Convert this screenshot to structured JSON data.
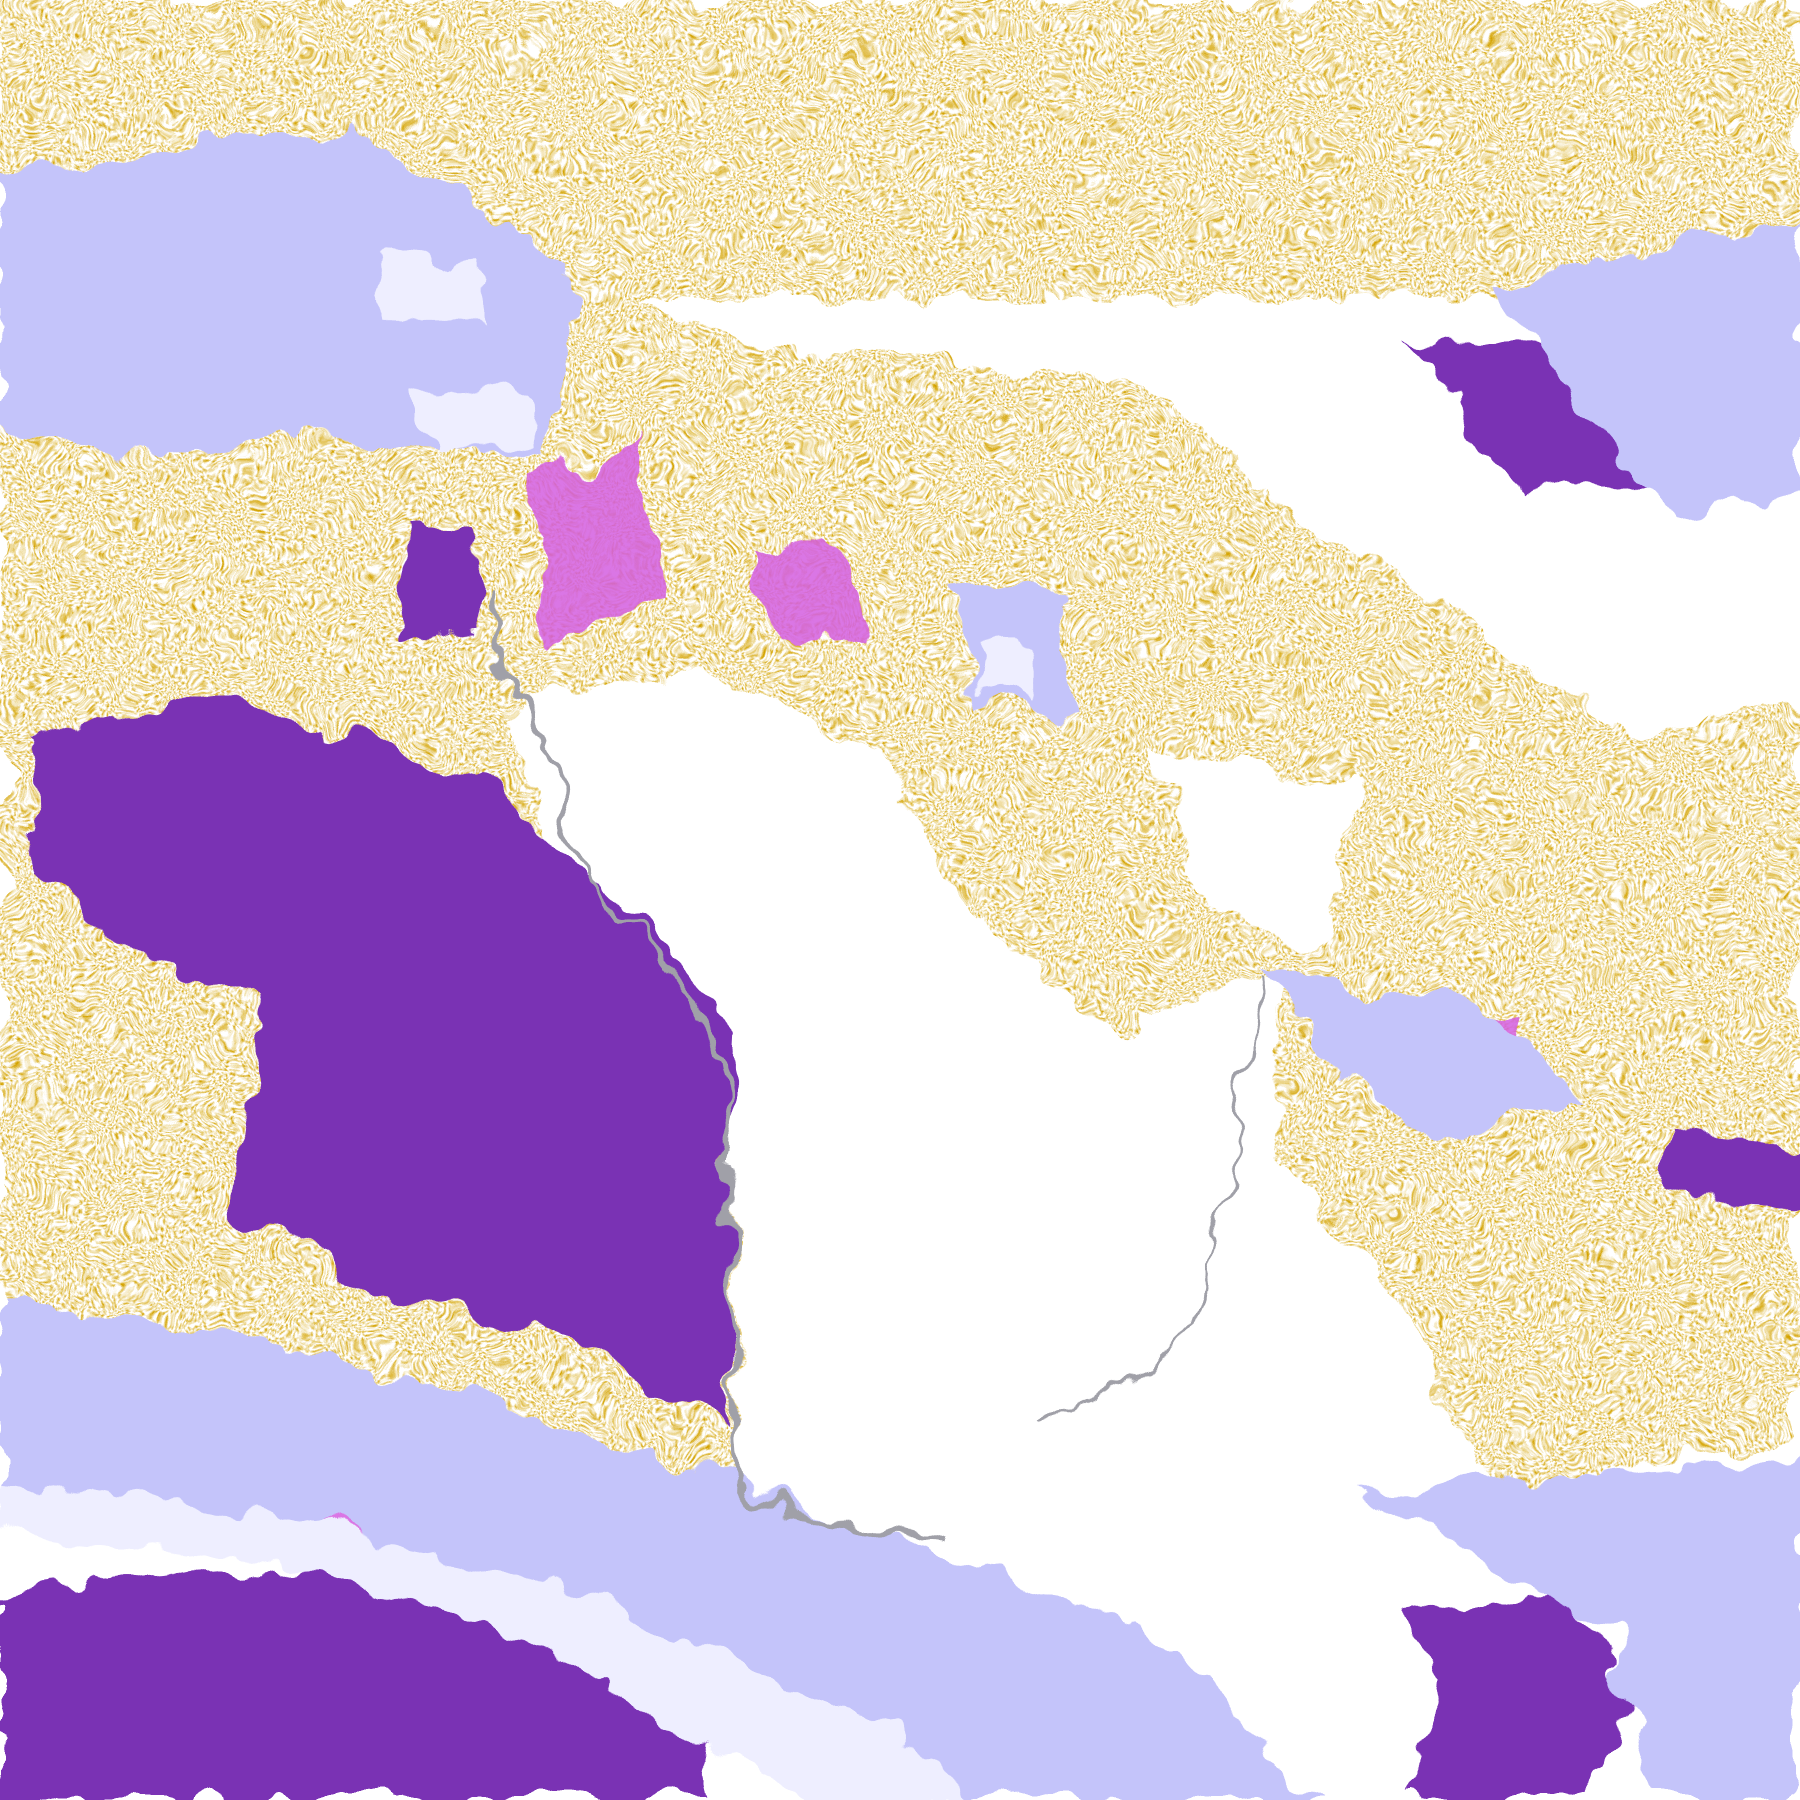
{
  "image": {
    "kind": "false-color satellite cloud imagery",
    "colors": {
      "clear": "#ffffff",
      "low_cloud_gold": "#d4a300",
      "ocean_purple": "#7a33b4",
      "magenta": "#d45ee0",
      "cloud_lavender": "#c4c4fa",
      "high_cloud_white": "#eeeeff",
      "coast_gray": "#a0a0a8"
    }
  }
}
